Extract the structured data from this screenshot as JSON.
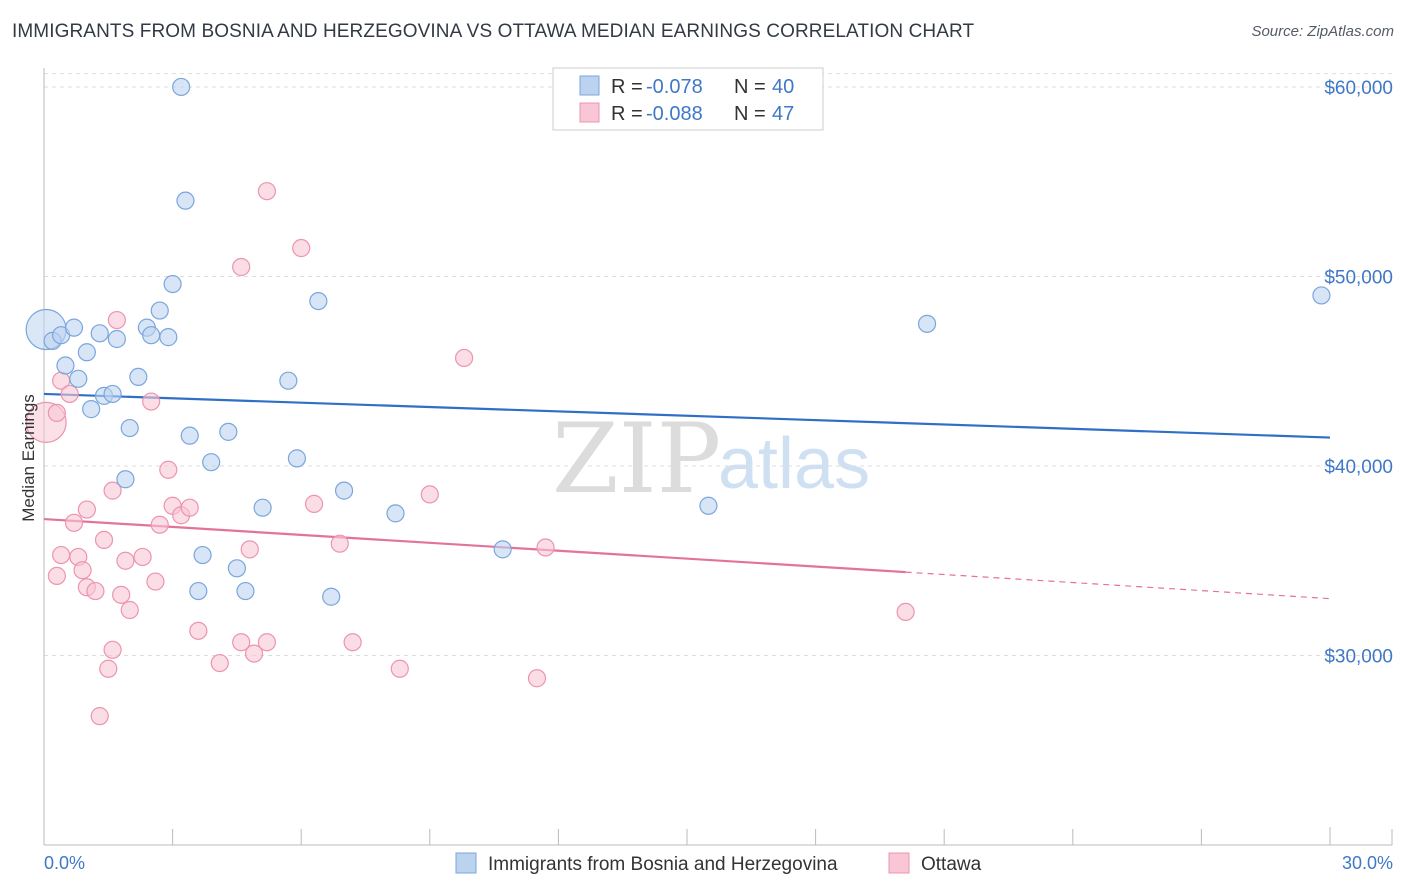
{
  "title": "IMMIGRANTS FROM BOSNIA AND HERZEGOVINA VS OTTAWA MEDIAN EARNINGS CORRELATION CHART",
  "source": "Source: ZipAtlas.com",
  "watermark": {
    "zip": "ZIP",
    "atlas": "atlas"
  },
  "colors": {
    "blue_fill": "#bcd3f0",
    "blue_stroke": "#7aa6dc",
    "blue_line": "#2f6fc6",
    "pink_fill": "#f8c6d5",
    "pink_stroke": "#ec94b0",
    "pink_line": "#e3739b",
    "grid": "#dddddd",
    "tick_text": "#3f78c6"
  },
  "stats": [
    {
      "r_label": "R =",
      "r_value": "-0.078",
      "n_label": "N =",
      "n_value": "40"
    },
    {
      "r_label": "R =",
      "r_value": "-0.088",
      "n_label": "N =",
      "n_value": "47"
    }
  ],
  "legend": [
    "Immigrants from Bosnia and Herzegovina",
    "Ottawa"
  ],
  "chart_data": {
    "type": "scatter",
    "title": "IMMIGRANTS FROM BOSNIA AND HERZEGOVINA VS OTTAWA MEDIAN EARNINGS CORRELATION CHART",
    "xlabel": "",
    "ylabel": "Median Earnings",
    "xlim": [
      0,
      30
    ],
    "ylim": [
      20000,
      61000
    ],
    "x_tick_labels": [
      "0.0%",
      "30.0%"
    ],
    "y_ticks": [
      30000,
      40000,
      50000,
      60000
    ],
    "y_tick_labels": [
      "$30,000",
      "$40,000",
      "$50,000",
      "$60,000"
    ],
    "legend_position": "bottom",
    "series": [
      {
        "name": "Immigrants from Bosnia and Herzegovina",
        "color": "#7aa6dc",
        "trend": {
          "x": [
            0,
            30
          ],
          "y": [
            43800,
            41500
          ]
        },
        "points": [
          {
            "x": 0.05,
            "y": 47200,
            "big": true
          },
          {
            "x": 0.2,
            "y": 46600
          },
          {
            "x": 0.4,
            "y": 46900
          },
          {
            "x": 0.7,
            "y": 47300
          },
          {
            "x": 1.0,
            "y": 46000
          },
          {
            "x": 1.3,
            "y": 47000
          },
          {
            "x": 1.7,
            "y": 46700
          },
          {
            "x": 0.5,
            "y": 45300
          },
          {
            "x": 0.8,
            "y": 44600
          },
          {
            "x": 1.4,
            "y": 43700
          },
          {
            "x": 1.6,
            "y": 43800
          },
          {
            "x": 2.2,
            "y": 44700
          },
          {
            "x": 1.1,
            "y": 43000
          },
          {
            "x": 2.4,
            "y": 47300
          },
          {
            "x": 2.5,
            "y": 46900
          },
          {
            "x": 2.7,
            "y": 48200
          },
          {
            "x": 2.9,
            "y": 46800
          },
          {
            "x": 3.0,
            "y": 49600
          },
          {
            "x": 3.2,
            "y": 60000
          },
          {
            "x": 3.3,
            "y": 54000
          },
          {
            "x": 2.0,
            "y": 42000
          },
          {
            "x": 3.4,
            "y": 41600
          },
          {
            "x": 4.3,
            "y": 41800
          },
          {
            "x": 3.9,
            "y": 40200
          },
          {
            "x": 1.9,
            "y": 39300
          },
          {
            "x": 5.7,
            "y": 44500
          },
          {
            "x": 5.9,
            "y": 40400
          },
          {
            "x": 6.4,
            "y": 48700
          },
          {
            "x": 7.0,
            "y": 38700
          },
          {
            "x": 5.1,
            "y": 37800
          },
          {
            "x": 8.2,
            "y": 37500
          },
          {
            "x": 3.7,
            "y": 35300
          },
          {
            "x": 4.5,
            "y": 34600
          },
          {
            "x": 3.6,
            "y": 33400
          },
          {
            "x": 4.7,
            "y": 33400
          },
          {
            "x": 6.7,
            "y": 33100
          },
          {
            "x": 10.7,
            "y": 35600
          },
          {
            "x": 15.5,
            "y": 37900
          },
          {
            "x": 20.6,
            "y": 47500
          },
          {
            "x": 29.8,
            "y": 49000
          }
        ]
      },
      {
        "name": "Ottawa",
        "color": "#ec94b0",
        "trend": {
          "x": [
            0,
            20.1
          ],
          "y": [
            37200,
            34400
          ]
        },
        "trend_dashed": {
          "x": [
            20.1,
            30
          ],
          "y": [
            34400,
            33000
          ]
        },
        "points": [
          {
            "x": 0.05,
            "y": 42300,
            "big": true
          },
          {
            "x": 0.3,
            "y": 42800
          },
          {
            "x": 0.4,
            "y": 44500
          },
          {
            "x": 0.6,
            "y": 43800
          },
          {
            "x": 1.0,
            "y": 37700
          },
          {
            "x": 0.7,
            "y": 37000
          },
          {
            "x": 0.4,
            "y": 35300
          },
          {
            "x": 0.8,
            "y": 35200
          },
          {
            "x": 0.3,
            "y": 34200
          },
          {
            "x": 0.9,
            "y": 34500
          },
          {
            "x": 1.0,
            "y": 33600
          },
          {
            "x": 1.2,
            "y": 33400
          },
          {
            "x": 1.4,
            "y": 36100
          },
          {
            "x": 1.6,
            "y": 38700
          },
          {
            "x": 1.7,
            "y": 47700
          },
          {
            "x": 1.9,
            "y": 35000
          },
          {
            "x": 2.0,
            "y": 32400
          },
          {
            "x": 1.8,
            "y": 33200
          },
          {
            "x": 2.3,
            "y": 35200
          },
          {
            "x": 2.6,
            "y": 33900
          },
          {
            "x": 2.7,
            "y": 36900
          },
          {
            "x": 2.5,
            "y": 43400
          },
          {
            "x": 2.9,
            "y": 39800
          },
          {
            "x": 3.0,
            "y": 37900
          },
          {
            "x": 3.2,
            "y": 37400
          },
          {
            "x": 3.4,
            "y": 37800
          },
          {
            "x": 1.6,
            "y": 30300
          },
          {
            "x": 1.5,
            "y": 29300
          },
          {
            "x": 1.3,
            "y": 26800
          },
          {
            "x": 3.6,
            "y": 31300
          },
          {
            "x": 4.1,
            "y": 29600
          },
          {
            "x": 4.6,
            "y": 30700
          },
          {
            "x": 4.9,
            "y": 30100
          },
          {
            "x": 5.2,
            "y": 30700
          },
          {
            "x": 4.8,
            "y": 35600
          },
          {
            "x": 4.6,
            "y": 50500
          },
          {
            "x": 5.2,
            "y": 54500
          },
          {
            "x": 6.0,
            "y": 51500
          },
          {
            "x": 6.3,
            "y": 38000
          },
          {
            "x": 6.9,
            "y": 35900
          },
          {
            "x": 7.2,
            "y": 30700
          },
          {
            "x": 9.0,
            "y": 38500
          },
          {
            "x": 8.3,
            "y": 29300
          },
          {
            "x": 9.8,
            "y": 45700
          },
          {
            "x": 11.7,
            "y": 35700
          },
          {
            "x": 11.5,
            "y": 28800
          },
          {
            "x": 20.1,
            "y": 32300
          }
        ]
      }
    ]
  }
}
